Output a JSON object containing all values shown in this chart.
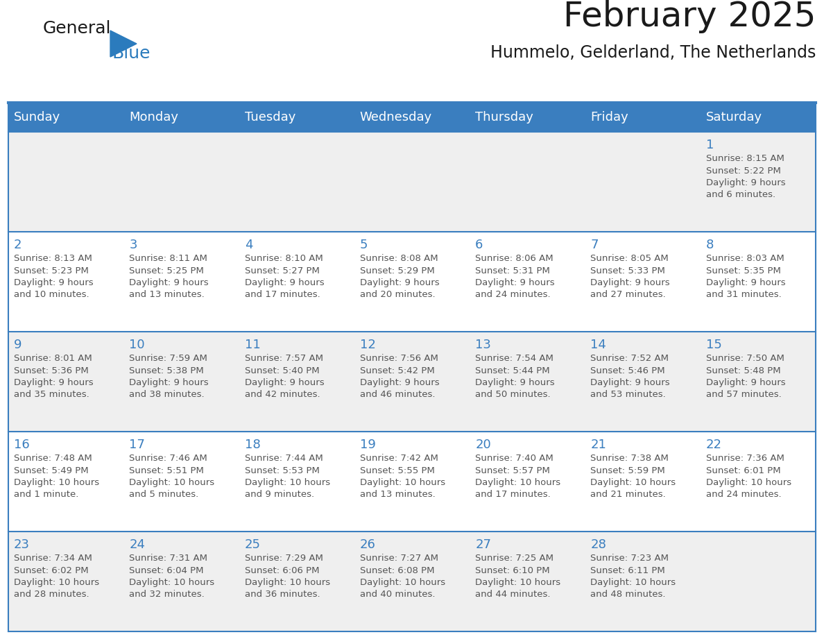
{
  "title": "February 2025",
  "subtitle": "Hummelo, Gelderland, The Netherlands",
  "days_of_week": [
    "Sunday",
    "Monday",
    "Tuesday",
    "Wednesday",
    "Thursday",
    "Friday",
    "Saturday"
  ],
  "header_bg": "#3A7EBF",
  "header_text": "#FFFFFF",
  "cell_bg_odd": "#EFEFEF",
  "cell_bg_even": "#FFFFFF",
  "border_color": "#3A7EBF",
  "day_number_color": "#3A7EBF",
  "info_text_color": "#555555",
  "title_color": "#1a1a1a",
  "subtitle_color": "#1a1a1a",
  "logo_general_color": "#1a1a1a",
  "logo_blue_color": "#2B7BBD",
  "weeks": [
    [
      null,
      null,
      null,
      null,
      null,
      null,
      1
    ],
    [
      2,
      3,
      4,
      5,
      6,
      7,
      8
    ],
    [
      9,
      10,
      11,
      12,
      13,
      14,
      15
    ],
    [
      16,
      17,
      18,
      19,
      20,
      21,
      22
    ],
    [
      23,
      24,
      25,
      26,
      27,
      28,
      null
    ]
  ],
  "cell_data": {
    "1": {
      "sunrise": "8:15 AM",
      "sunset": "5:22 PM",
      "daylight_line1": "Daylight: 9 hours",
      "daylight_line2": "and 6 minutes."
    },
    "2": {
      "sunrise": "8:13 AM",
      "sunset": "5:23 PM",
      "daylight_line1": "Daylight: 9 hours",
      "daylight_line2": "and 10 minutes."
    },
    "3": {
      "sunrise": "8:11 AM",
      "sunset": "5:25 PM",
      "daylight_line1": "Daylight: 9 hours",
      "daylight_line2": "and 13 minutes."
    },
    "4": {
      "sunrise": "8:10 AM",
      "sunset": "5:27 PM",
      "daylight_line1": "Daylight: 9 hours",
      "daylight_line2": "and 17 minutes."
    },
    "5": {
      "sunrise": "8:08 AM",
      "sunset": "5:29 PM",
      "daylight_line1": "Daylight: 9 hours",
      "daylight_line2": "and 20 minutes."
    },
    "6": {
      "sunrise": "8:06 AM",
      "sunset": "5:31 PM",
      "daylight_line1": "Daylight: 9 hours",
      "daylight_line2": "and 24 minutes."
    },
    "7": {
      "sunrise": "8:05 AM",
      "sunset": "5:33 PM",
      "daylight_line1": "Daylight: 9 hours",
      "daylight_line2": "and 27 minutes."
    },
    "8": {
      "sunrise": "8:03 AM",
      "sunset": "5:35 PM",
      "daylight_line1": "Daylight: 9 hours",
      "daylight_line2": "and 31 minutes."
    },
    "9": {
      "sunrise": "8:01 AM",
      "sunset": "5:36 PM",
      "daylight_line1": "Daylight: 9 hours",
      "daylight_line2": "and 35 minutes."
    },
    "10": {
      "sunrise": "7:59 AM",
      "sunset": "5:38 PM",
      "daylight_line1": "Daylight: 9 hours",
      "daylight_line2": "and 38 minutes."
    },
    "11": {
      "sunrise": "7:57 AM",
      "sunset": "5:40 PM",
      "daylight_line1": "Daylight: 9 hours",
      "daylight_line2": "and 42 minutes."
    },
    "12": {
      "sunrise": "7:56 AM",
      "sunset": "5:42 PM",
      "daylight_line1": "Daylight: 9 hours",
      "daylight_line2": "and 46 minutes."
    },
    "13": {
      "sunrise": "7:54 AM",
      "sunset": "5:44 PM",
      "daylight_line1": "Daylight: 9 hours",
      "daylight_line2": "and 50 minutes."
    },
    "14": {
      "sunrise": "7:52 AM",
      "sunset": "5:46 PM",
      "daylight_line1": "Daylight: 9 hours",
      "daylight_line2": "and 53 minutes."
    },
    "15": {
      "sunrise": "7:50 AM",
      "sunset": "5:48 PM",
      "daylight_line1": "Daylight: 9 hours",
      "daylight_line2": "and 57 minutes."
    },
    "16": {
      "sunrise": "7:48 AM",
      "sunset": "5:49 PM",
      "daylight_line1": "Daylight: 10 hours",
      "daylight_line2": "and 1 minute."
    },
    "17": {
      "sunrise": "7:46 AM",
      "sunset": "5:51 PM",
      "daylight_line1": "Daylight: 10 hours",
      "daylight_line2": "and 5 minutes."
    },
    "18": {
      "sunrise": "7:44 AM",
      "sunset": "5:53 PM",
      "daylight_line1": "Daylight: 10 hours",
      "daylight_line2": "and 9 minutes."
    },
    "19": {
      "sunrise": "7:42 AM",
      "sunset": "5:55 PM",
      "daylight_line1": "Daylight: 10 hours",
      "daylight_line2": "and 13 minutes."
    },
    "20": {
      "sunrise": "7:40 AM",
      "sunset": "5:57 PM",
      "daylight_line1": "Daylight: 10 hours",
      "daylight_line2": "and 17 minutes."
    },
    "21": {
      "sunrise": "7:38 AM",
      "sunset": "5:59 PM",
      "daylight_line1": "Daylight: 10 hours",
      "daylight_line2": "and 21 minutes."
    },
    "22": {
      "sunrise": "7:36 AM",
      "sunset": "6:01 PM",
      "daylight_line1": "Daylight: 10 hours",
      "daylight_line2": "and 24 minutes."
    },
    "23": {
      "sunrise": "7:34 AM",
      "sunset": "6:02 PM",
      "daylight_line1": "Daylight: 10 hours",
      "daylight_line2": "and 28 minutes."
    },
    "24": {
      "sunrise": "7:31 AM",
      "sunset": "6:04 PM",
      "daylight_line1": "Daylight: 10 hours",
      "daylight_line2": "and 32 minutes."
    },
    "25": {
      "sunrise": "7:29 AM",
      "sunset": "6:06 PM",
      "daylight_line1": "Daylight: 10 hours",
      "daylight_line2": "and 36 minutes."
    },
    "26": {
      "sunrise": "7:27 AM",
      "sunset": "6:08 PM",
      "daylight_line1": "Daylight: 10 hours",
      "daylight_line2": "and 40 minutes."
    },
    "27": {
      "sunrise": "7:25 AM",
      "sunset": "6:10 PM",
      "daylight_line1": "Daylight: 10 hours",
      "daylight_line2": "and 44 minutes."
    },
    "28": {
      "sunrise": "7:23 AM",
      "sunset": "6:11 PM",
      "daylight_line1": "Daylight: 10 hours",
      "daylight_line2": "and 48 minutes."
    }
  }
}
